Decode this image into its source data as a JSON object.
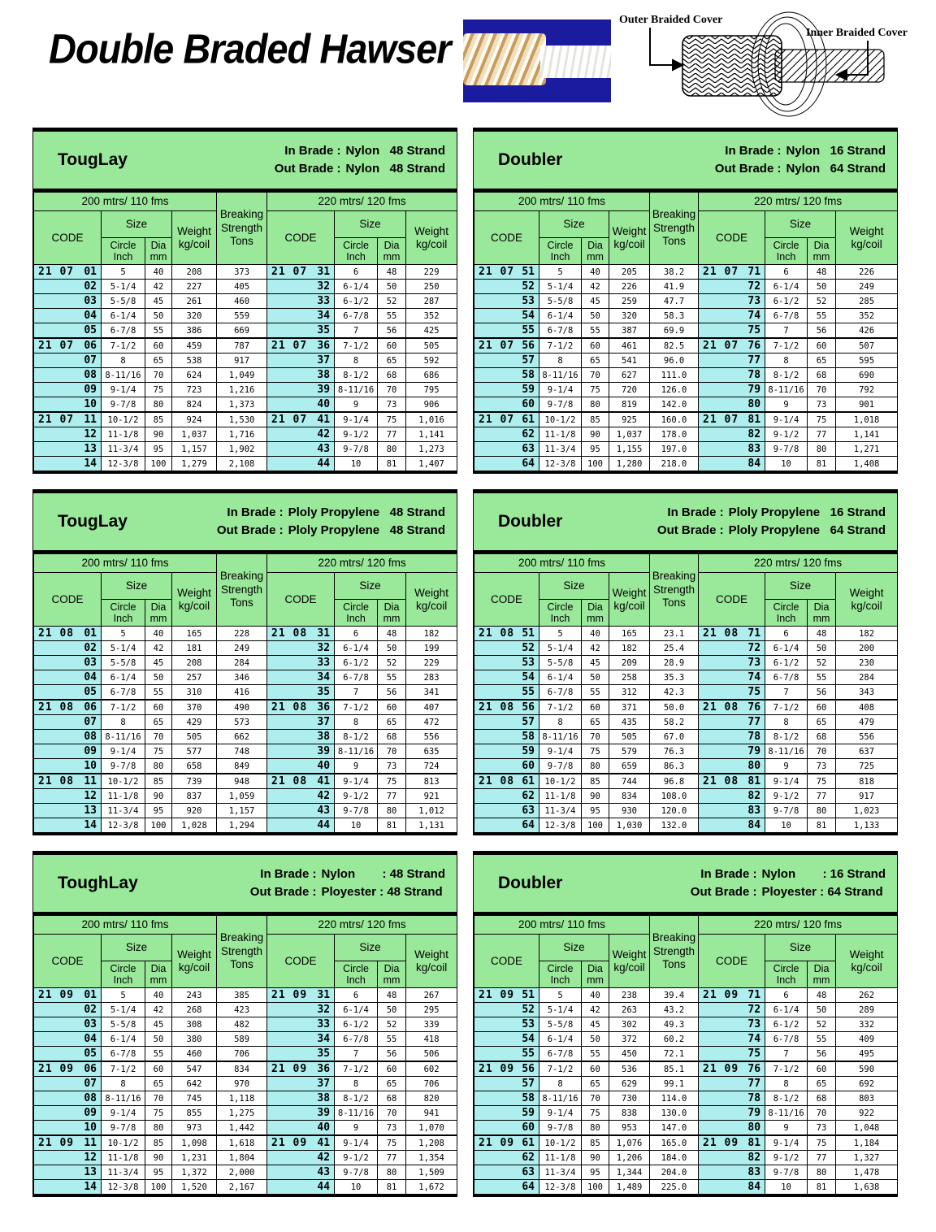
{
  "page_title": "Double Braded Hawser",
  "diagram": {
    "outer_label": "Outer Braided Cover",
    "inner_label": "Inner Braided Cover"
  },
  "colors": {
    "header_green": "#9ae89a",
    "code_cyan": "#aeeeee",
    "photo_blue": "#1b1ba0"
  },
  "labels": {
    "in_brade": "In Brade :",
    "out_brade": "Out Brade :",
    "col_200": "200 mtrs/ 110 fms",
    "col_220": "220 mtrs/ 120 fms",
    "code": "CODE",
    "size": "Size",
    "circle_inch": "Circle\nInch",
    "dia_mm": "Dia\nmm",
    "weight": "Weight\nkg/coil",
    "breaking": "Breaking\nStrength\nTons"
  },
  "tables": [
    {
      "name": "TougLay",
      "in_brade": "Nylon   48 Strand",
      "out_brade": "Nylon   48 Strand",
      "rows": [
        [
          "21 07",
          "01",
          "5",
          "40",
          "208",
          "373",
          "21 07",
          "31",
          "6",
          "48",
          "229"
        ],
        [
          "",
          "02",
          "5-1/4",
          "42",
          "227",
          "405",
          "",
          "32",
          "6-1/4",
          "50",
          "250"
        ],
        [
          "",
          "03",
          "5-5/8",
          "45",
          "261",
          "460",
          "",
          "33",
          "6-1/2",
          "52",
          "287"
        ],
        [
          "",
          "04",
          "6-1/4",
          "50",
          "320",
          "559",
          "",
          "34",
          "6-7/8",
          "55",
          "352"
        ],
        [
          "",
          "05",
          "6-7/8",
          "55",
          "386",
          "669",
          "",
          "35",
          "7",
          "56",
          "425"
        ],
        [
          "21 07",
          "06",
          "7-1/2",
          "60",
          "459",
          "787",
          "21 07",
          "36",
          "7-1/2",
          "60",
          "505"
        ],
        [
          "",
          "07",
          "8",
          "65",
          "538",
          "917",
          "",
          "37",
          "8",
          "65",
          "592"
        ],
        [
          "",
          "08",
          "8-11/16",
          "70",
          "624",
          "1,049",
          "",
          "38",
          "8-1/2",
          "68",
          "686"
        ],
        [
          "",
          "09",
          "9-1/4",
          "75",
          "723",
          "1,216",
          "",
          "39",
          "8-11/16",
          "70",
          "795"
        ],
        [
          "",
          "10",
          "9-7/8",
          "80",
          "824",
          "1,373",
          "",
          "40",
          "9",
          "73",
          "906"
        ],
        [
          "21 07",
          "11",
          "10-1/2",
          "85",
          "924",
          "1,530",
          "21 07",
          "41",
          "9-1/4",
          "75",
          "1,016"
        ],
        [
          "",
          "12",
          "11-1/8",
          "90",
          "1,037",
          "1,716",
          "",
          "42",
          "9-1/2",
          "77",
          "1,141"
        ],
        [
          "",
          "13",
          "11-3/4",
          "95",
          "1,157",
          "1,902",
          "",
          "43",
          "9-7/8",
          "80",
          "1,273"
        ],
        [
          "",
          "14",
          "12-3/8",
          "100",
          "1,279",
          "2,108",
          "",
          "44",
          "10",
          "81",
          "1,407"
        ]
      ]
    },
    {
      "name": "Doubler",
      "in_brade": "Nylon   16 Strand",
      "out_brade": "Nylon   64 Strand",
      "rows": [
        [
          "21 07",
          "51",
          "5",
          "40",
          "205",
          "38.2",
          "21 07",
          "71",
          "6",
          "48",
          "226"
        ],
        [
          "",
          "52",
          "5-1/4",
          "42",
          "226",
          "41.9",
          "",
          "72",
          "6-1/4",
          "50",
          "249"
        ],
        [
          "",
          "53",
          "5-5/8",
          "45",
          "259",
          "47.7",
          "",
          "73",
          "6-1/2",
          "52",
          "285"
        ],
        [
          "",
          "54",
          "6-1/4",
          "50",
          "320",
          "58.3",
          "",
          "74",
          "6-7/8",
          "55",
          "352"
        ],
        [
          "",
          "55",
          "6-7/8",
          "55",
          "387",
          "69.9",
          "",
          "75",
          "7",
          "56",
          "426"
        ],
        [
          "21 07",
          "56",
          "7-1/2",
          "60",
          "461",
          "82.5",
          "21 07",
          "76",
          "7-1/2",
          "60",
          "507"
        ],
        [
          "",
          "57",
          "8",
          "65",
          "541",
          "96.0",
          "",
          "77",
          "8",
          "65",
          "595"
        ],
        [
          "",
          "58",
          "8-11/16",
          "70",
          "627",
          "111.0",
          "",
          "78",
          "8-1/2",
          "68",
          "690"
        ],
        [
          "",
          "59",
          "9-1/4",
          "75",
          "720",
          "126.0",
          "",
          "79",
          "8-11/16",
          "70",
          "792"
        ],
        [
          "",
          "60",
          "9-7/8",
          "80",
          "819",
          "142.0",
          "",
          "80",
          "9",
          "73",
          "901"
        ],
        [
          "21 07",
          "61",
          "10-1/2",
          "85",
          "925",
          "160.0",
          "21 07",
          "81",
          "9-1/4",
          "75",
          "1,018"
        ],
        [
          "",
          "62",
          "11-1/8",
          "90",
          "1,037",
          "178.0",
          "",
          "82",
          "9-1/2",
          "77",
          "1,141"
        ],
        [
          "",
          "63",
          "11-3/4",
          "95",
          "1,155",
          "197.0",
          "",
          "83",
          "9-7/8",
          "80",
          "1,271"
        ],
        [
          "",
          "64",
          "12-3/8",
          "100",
          "1,280",
          "218.0",
          "",
          "84",
          "10",
          "81",
          "1,408"
        ]
      ]
    },
    {
      "name": "TougLay",
      "in_brade": "Ploly Propylene   48 Strand",
      "out_brade": "Ploly Propylene   48 Strand",
      "rows": [
        [
          "21 08",
          "01",
          "5",
          "40",
          "165",
          "228",
          "21 08",
          "31",
          "6",
          "48",
          "182"
        ],
        [
          "",
          "02",
          "5-1/4",
          "42",
          "181",
          "249",
          "",
          "32",
          "6-1/4",
          "50",
          "199"
        ],
        [
          "",
          "03",
          "5-5/8",
          "45",
          "208",
          "284",
          "",
          "33",
          "6-1/2",
          "52",
          "229"
        ],
        [
          "",
          "04",
          "6-1/4",
          "50",
          "257",
          "346",
          "",
          "34",
          "6-7/8",
          "55",
          "283"
        ],
        [
          "",
          "05",
          "6-7/8",
          "55",
          "310",
          "416",
          "",
          "35",
          "7",
          "56",
          "341"
        ],
        [
          "21 08",
          "06",
          "7-1/2",
          "60",
          "370",
          "490",
          "21 08",
          "36",
          "7-1/2",
          "60",
          "407"
        ],
        [
          "",
          "07",
          "8",
          "65",
          "429",
          "573",
          "",
          "37",
          "8",
          "65",
          "472"
        ],
        [
          "",
          "08",
          "8-11/16",
          "70",
          "505",
          "662",
          "",
          "38",
          "8-1/2",
          "68",
          "556"
        ],
        [
          "",
          "09",
          "9-1/4",
          "75",
          "577",
          "748",
          "",
          "39",
          "8-11/16",
          "70",
          "635"
        ],
        [
          "",
          "10",
          "9-7/8",
          "80",
          "658",
          "849",
          "",
          "40",
          "9",
          "73",
          "724"
        ],
        [
          "21 08",
          "11",
          "10-1/2",
          "85",
          "739",
          "948",
          "21 08",
          "41",
          "9-1/4",
          "75",
          "813"
        ],
        [
          "",
          "12",
          "11-1/8",
          "90",
          "837",
          "1,059",
          "",
          "42",
          "9-1/2",
          "77",
          "921"
        ],
        [
          "",
          "13",
          "11-3/4",
          "95",
          "920",
          "1,157",
          "",
          "43",
          "9-7/8",
          "80",
          "1,012"
        ],
        [
          "",
          "14",
          "12-3/8",
          "100",
          "1,028",
          "1,294",
          "",
          "44",
          "10",
          "81",
          "1,131"
        ]
      ]
    },
    {
      "name": "Doubler",
      "in_brade": "Ploly Propylene   16 Strand",
      "out_brade": "Ploly Propylene   64 Strand",
      "rows": [
        [
          "21 08",
          "51",
          "5",
          "40",
          "165",
          "23.1",
          "21 08",
          "71",
          "6",
          "48",
          "182"
        ],
        [
          "",
          "52",
          "5-1/4",
          "42",
          "182",
          "25.4",
          "",
          "72",
          "6-1/4",
          "50",
          "200"
        ],
        [
          "",
          "53",
          "5-5/8",
          "45",
          "209",
          "28.9",
          "",
          "73",
          "6-1/2",
          "52",
          "230"
        ],
        [
          "",
          "54",
          "6-1/4",
          "50",
          "258",
          "35.3",
          "",
          "74",
          "6-7/8",
          "55",
          "284"
        ],
        [
          "",
          "55",
          "6-7/8",
          "55",
          "312",
          "42.3",
          "",
          "75",
          "7",
          "56",
          "343"
        ],
        [
          "21 08",
          "56",
          "7-1/2",
          "60",
          "371",
          "50.0",
          "21 08",
          "76",
          "7-1/2",
          "60",
          "408"
        ],
        [
          "",
          "57",
          "8",
          "65",
          "435",
          "58.2",
          "",
          "77",
          "8",
          "65",
          "479"
        ],
        [
          "",
          "58",
          "8-11/16",
          "70",
          "505",
          "67.0",
          "",
          "78",
          "8-1/2",
          "68",
          "556"
        ],
        [
          "",
          "59",
          "9-1/4",
          "75",
          "579",
          "76.3",
          "",
          "79",
          "8-11/16",
          "70",
          "637"
        ],
        [
          "",
          "60",
          "9-7/8",
          "80",
          "659",
          "86.3",
          "",
          "80",
          "9",
          "73",
          "725"
        ],
        [
          "21 08",
          "61",
          "10-1/2",
          "85",
          "744",
          "96.8",
          "21 08",
          "81",
          "9-1/4",
          "75",
          "818"
        ],
        [
          "",
          "62",
          "11-1/8",
          "90",
          "834",
          "108.0",
          "",
          "82",
          "9-1/2",
          "77",
          "917"
        ],
        [
          "",
          "63",
          "11-3/4",
          "95",
          "930",
          "120.0",
          "",
          "83",
          "9-7/8",
          "80",
          "1,023"
        ],
        [
          "",
          "64",
          "12-3/8",
          "100",
          "1,030",
          "132.0",
          "",
          "84",
          "10",
          "81",
          "1,133"
        ]
      ]
    },
    {
      "name": "ToughLay",
      "in_brade": "Nylon        : 48 Strand",
      "out_brade": "Ployester : 48 Strand",
      "rows": [
        [
          "21 09",
          "01",
          "5",
          "40",
          "243",
          "385",
          "21 09",
          "31",
          "6",
          "48",
          "267"
        ],
        [
          "",
          "02",
          "5-1/4",
          "42",
          "268",
          "423",
          "",
          "32",
          "6-1/4",
          "50",
          "295"
        ],
        [
          "",
          "03",
          "5-5/8",
          "45",
          "308",
          "482",
          "",
          "33",
          "6-1/2",
          "52",
          "339"
        ],
        [
          "",
          "04",
          "6-1/4",
          "50",
          "380",
          "589",
          "",
          "34",
          "6-7/8",
          "55",
          "418"
        ],
        [
          "",
          "05",
          "6-7/8",
          "55",
          "460",
          "706",
          "",
          "35",
          "7",
          "56",
          "506"
        ],
        [
          "21 09",
          "06",
          "7-1/2",
          "60",
          "547",
          "834",
          "21 09",
          "36",
          "7-1/2",
          "60",
          "602"
        ],
        [
          "",
          "07",
          "8",
          "65",
          "642",
          "970",
          "",
          "37",
          "8",
          "65",
          "706"
        ],
        [
          "",
          "08",
          "8-11/16",
          "70",
          "745",
          "1,118",
          "",
          "38",
          "8-1/2",
          "68",
          "820"
        ],
        [
          "",
          "09",
          "9-1/4",
          "75",
          "855",
          "1,275",
          "",
          "39",
          "8-11/16",
          "70",
          "941"
        ],
        [
          "",
          "10",
          "9-7/8",
          "80",
          "973",
          "1,442",
          "",
          "40",
          "9",
          "73",
          "1,070"
        ],
        [
          "21 09",
          "11",
          "10-1/2",
          "85",
          "1,098",
          "1,618",
          "21 09",
          "41",
          "9-1/4",
          "75",
          "1,208"
        ],
        [
          "",
          "12",
          "11-1/8",
          "90",
          "1,231",
          "1,804",
          "",
          "42",
          "9-1/2",
          "77",
          "1,354"
        ],
        [
          "",
          "13",
          "11-3/4",
          "95",
          "1,372",
          "2,000",
          "",
          "43",
          "9-7/8",
          "80",
          "1,509"
        ],
        [
          "",
          "14",
          "12-3/8",
          "100",
          "1,520",
          "2,167",
          "",
          "44",
          "10",
          "81",
          "1,672"
        ]
      ]
    },
    {
      "name": "Doubler",
      "in_brade": "Nylon        : 16 Strand",
      "out_brade": "Ployester : 64 Strand",
      "rows": [
        [
          "21 09",
          "51",
          "5",
          "40",
          "238",
          "39.4",
          "21 09",
          "71",
          "6",
          "48",
          "262"
        ],
        [
          "",
          "52",
          "5-1/4",
          "42",
          "263",
          "43.2",
          "",
          "72",
          "6-1/4",
          "50",
          "289"
        ],
        [
          "",
          "53",
          "5-5/8",
          "45",
          "302",
          "49.3",
          "",
          "73",
          "6-1/2",
          "52",
          "332"
        ],
        [
          "",
          "54",
          "6-1/4",
          "50",
          "372",
          "60.2",
          "",
          "74",
          "6-7/8",
          "55",
          "409"
        ],
        [
          "",
          "55",
          "6-7/8",
          "55",
          "450",
          "72.1",
          "",
          "75",
          "7",
          "56",
          "495"
        ],
        [
          "21 09",
          "56",
          "7-1/2",
          "60",
          "536",
          "85.1",
          "21 09",
          "76",
          "7-1/2",
          "60",
          "590"
        ],
        [
          "",
          "57",
          "8",
          "65",
          "629",
          "99.1",
          "",
          "77",
          "8",
          "65",
          "692"
        ],
        [
          "",
          "58",
          "8-11/16",
          "70",
          "730",
          "114.0",
          "",
          "78",
          "8-1/2",
          "68",
          "803"
        ],
        [
          "",
          "59",
          "9-1/4",
          "75",
          "838",
          "130.0",
          "",
          "79",
          "8-11/16",
          "70",
          "922"
        ],
        [
          "",
          "60",
          "9-7/8",
          "80",
          "953",
          "147.0",
          "",
          "80",
          "9",
          "73",
          "1,048"
        ],
        [
          "21 09",
          "61",
          "10-1/2",
          "85",
          "1,076",
          "165.0",
          "21 09",
          "81",
          "9-1/4",
          "75",
          "1,184"
        ],
        [
          "",
          "62",
          "11-1/8",
          "90",
          "1,206",
          "184.0",
          "",
          "82",
          "9-1/2",
          "77",
          "1,327"
        ],
        [
          "",
          "63",
          "11-3/4",
          "95",
          "1,344",
          "204.0",
          "",
          "83",
          "9-7/8",
          "80",
          "1,478"
        ],
        [
          "",
          "64",
          "12-3/8",
          "100",
          "1,489",
          "225.0",
          "",
          "84",
          "10",
          "81",
          "1,638"
        ]
      ]
    }
  ]
}
